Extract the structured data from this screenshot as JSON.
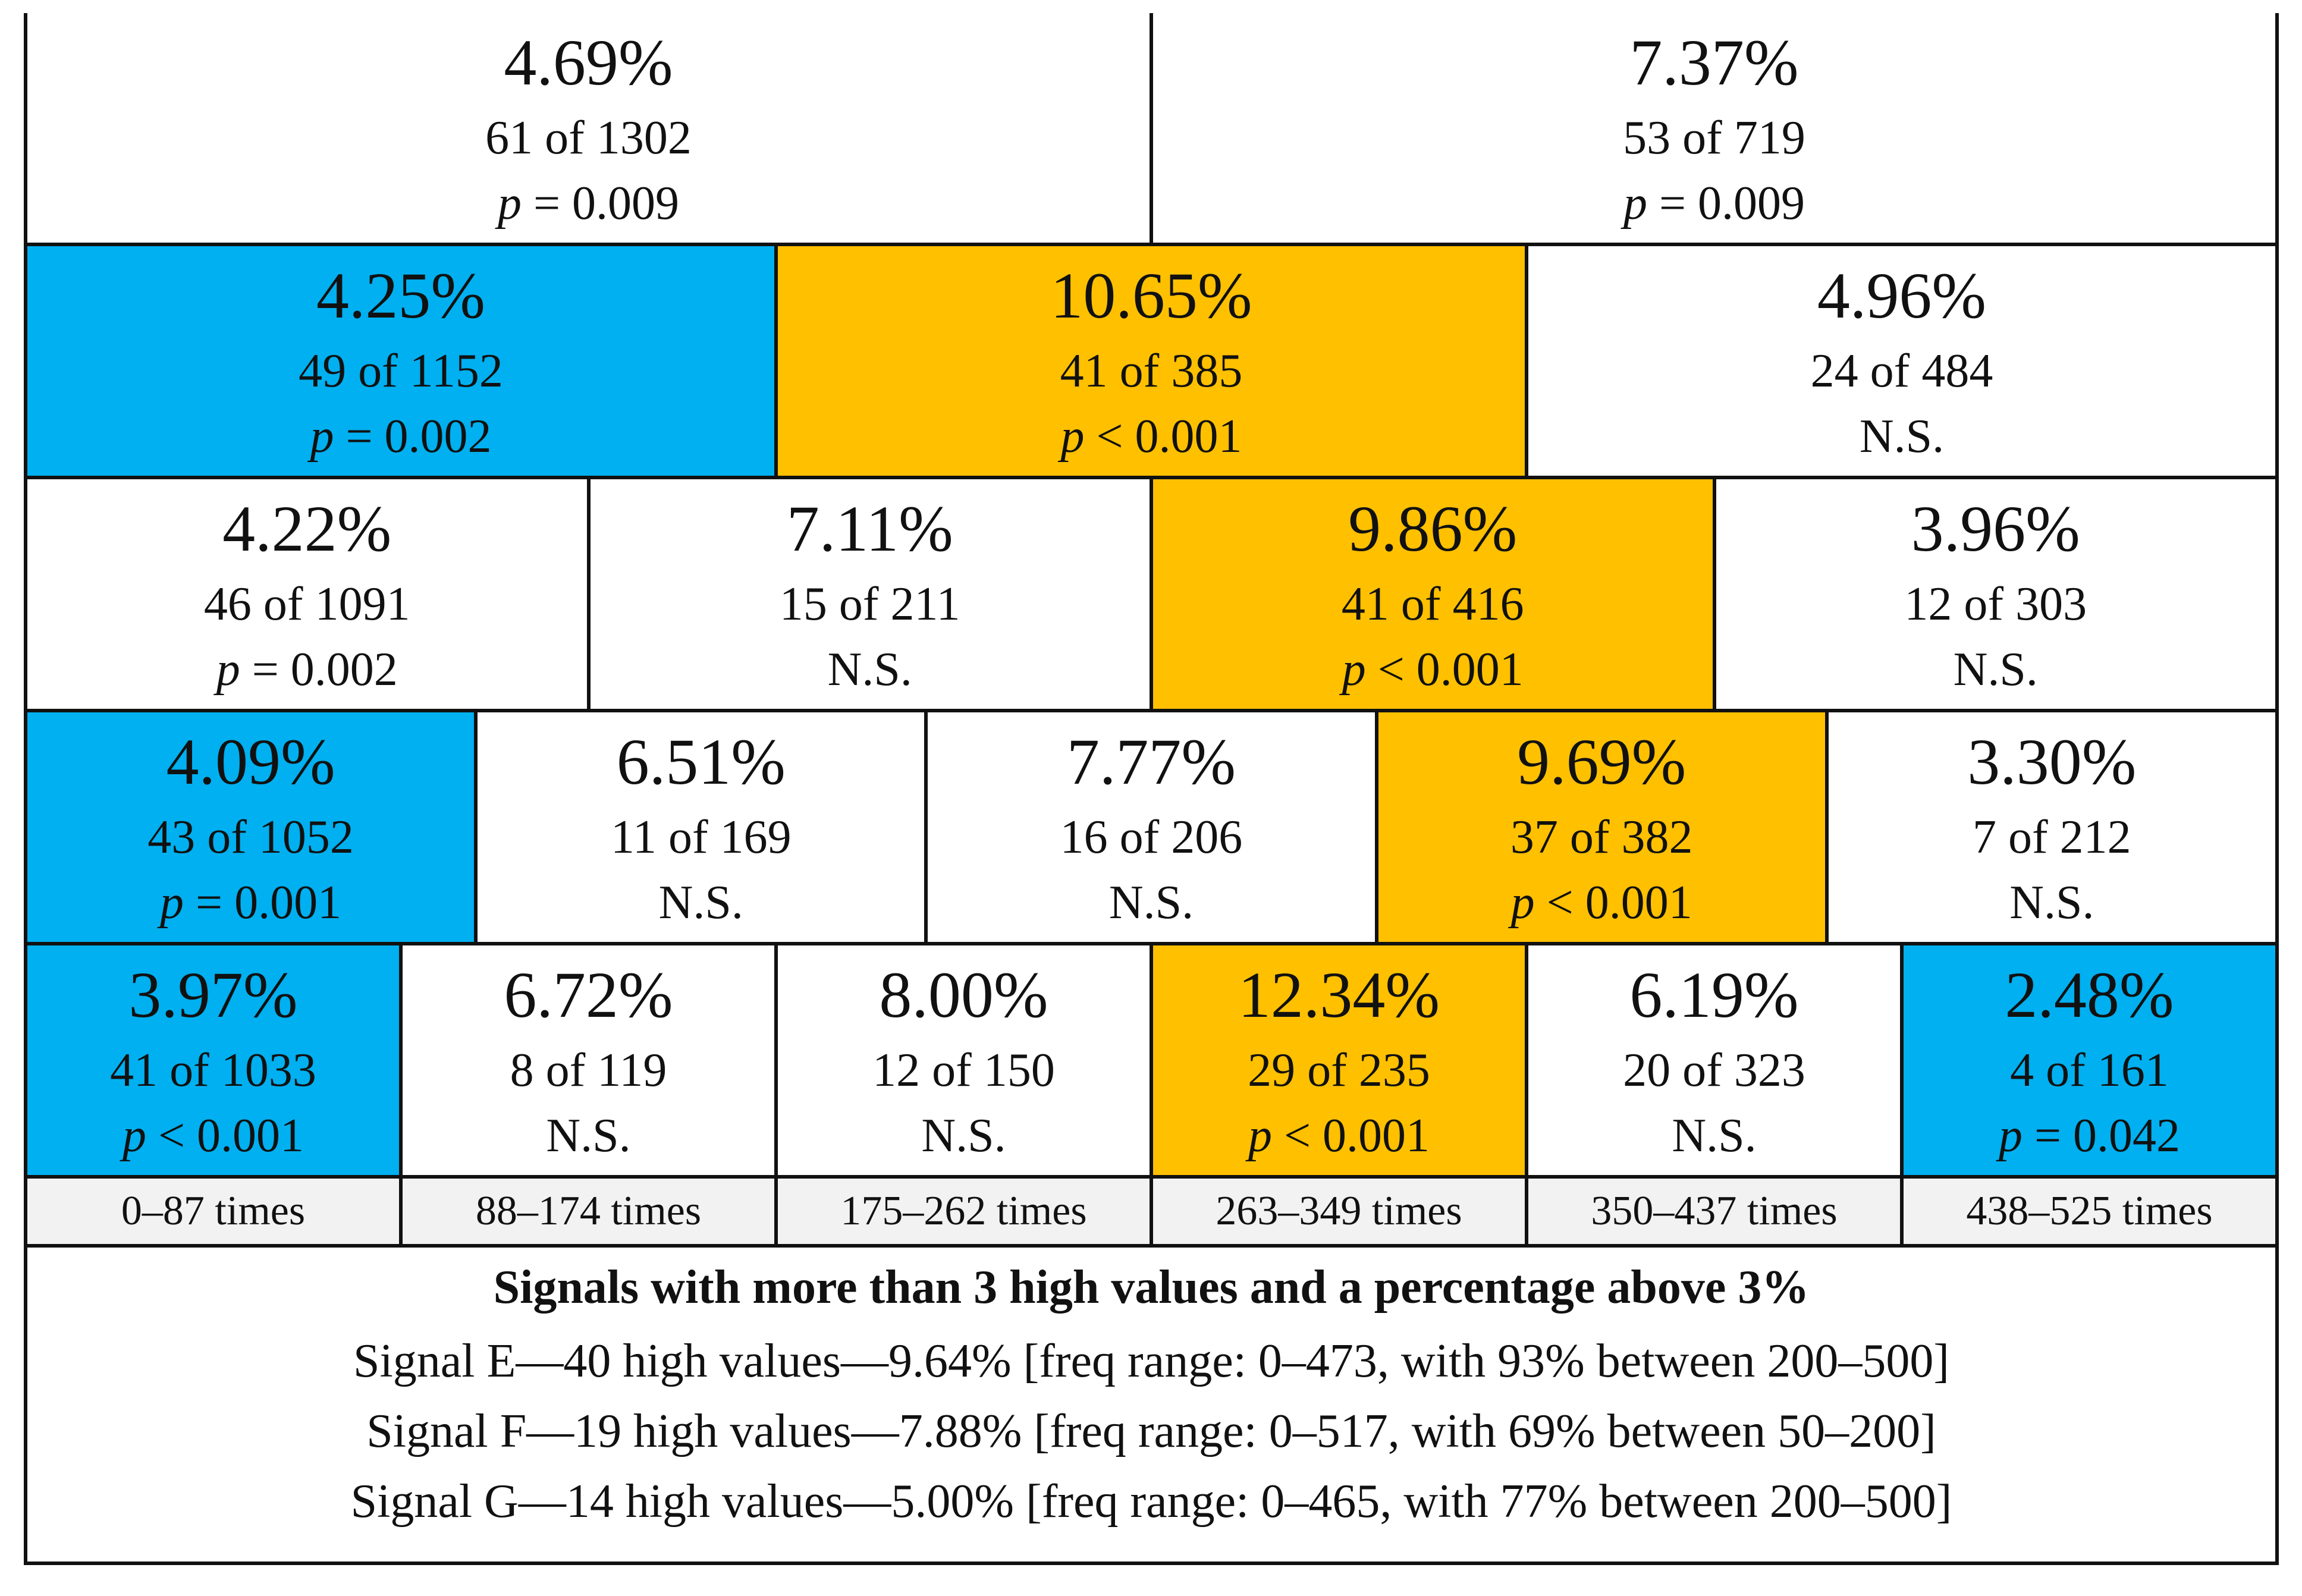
{
  "colors": {
    "below": "#00b0f0",
    "above": "#ffc000",
    "neutral": "#ffffff"
  },
  "rows": [
    [
      {
        "pct": "4.69%",
        "count": "61 of 1302",
        "p_label": "p",
        "p_rest": " = 0.009",
        "color": "neutral"
      },
      {
        "pct": "7.37%",
        "count": "53 of 719",
        "p_label": "p",
        "p_rest": " = 0.009",
        "color": "neutral"
      }
    ],
    [
      {
        "pct": "4.25%",
        "count": "49 of 1152",
        "p_label": "p",
        "p_rest": " = 0.002",
        "color": "below"
      },
      {
        "pct": "10.65%",
        "count": "41 of 385",
        "p_label": "p",
        "p_rest": " < 0.001",
        "color": "above"
      },
      {
        "pct": "4.96%",
        "count": "24 of 484",
        "p_label": "",
        "p_rest": "N.S.",
        "color": "neutral"
      }
    ],
    [
      {
        "pct": "4.22%",
        "count": "46 of 1091",
        "p_label": "p",
        "p_rest": " = 0.002",
        "color": "neutral"
      },
      {
        "pct": "7.11%",
        "count": "15 of 211",
        "p_label": "",
        "p_rest": "N.S.",
        "color": "neutral"
      },
      {
        "pct": "9.86%",
        "count": "41 of 416",
        "p_label": "p",
        "p_rest": " < 0.001",
        "color": "above"
      },
      {
        "pct": "3.96%",
        "count": "12 of 303",
        "p_label": "",
        "p_rest": "N.S.",
        "color": "neutral"
      }
    ],
    [
      {
        "pct": "4.09%",
        "count": "43 of 1052",
        "p_label": "p",
        "p_rest": " = 0.001",
        "color": "below"
      },
      {
        "pct": "6.51%",
        "count": "11 of 169",
        "p_label": "",
        "p_rest": "N.S.",
        "color": "neutral"
      },
      {
        "pct": "7.77%",
        "count": "16 of 206",
        "p_label": "",
        "p_rest": "N.S.",
        "color": "neutral"
      },
      {
        "pct": "9.69%",
        "count": "37 of 382",
        "p_label": "p",
        "p_rest": " < 0.001",
        "color": "above"
      },
      {
        "pct": "3.30%",
        "count": "7 of 212",
        "p_label": "",
        "p_rest": "N.S.",
        "color": "neutral"
      }
    ],
    [
      {
        "pct": "3.97%",
        "count": "41 of 1033",
        "p_label": "p",
        "p_rest": " < 0.001",
        "color": "below"
      },
      {
        "pct": "6.72%",
        "count": "8 of 119",
        "p_label": "",
        "p_rest": "N.S.",
        "color": "neutral"
      },
      {
        "pct": "8.00%",
        "count": "12 of 150",
        "p_label": "",
        "p_rest": "N.S.",
        "color": "neutral"
      },
      {
        "pct": "12.34%",
        "count": "29 of 235",
        "p_label": "p",
        "p_rest": " < 0.001",
        "color": "above"
      },
      {
        "pct": "6.19%",
        "count": "20 of 323",
        "p_label": "",
        "p_rest": "N.S.",
        "color": "neutral"
      },
      {
        "pct": "2.48%",
        "count": "4 of 161",
        "p_label": "p",
        "p_rest": " = 0.042",
        "color": "below"
      }
    ]
  ],
  "bands": [
    "0–87 times",
    "88–174 times",
    "175–262 times",
    "263–349 times",
    "350–437 times",
    "438–525 times"
  ],
  "notes": {
    "title": "Signals with more than 3 high values and a percentage above 3%",
    "lines": [
      "Signal E—40 high values—9.64% [freq range: 0–473, with 93% between 200–500]",
      "Signal F—19 high values—7.88% [freq range: 0–517, with 69% between 50–200]",
      "Signal G—14 high values—5.00% [freq range: 0–465, with 77% between 200–500]"
    ]
  }
}
